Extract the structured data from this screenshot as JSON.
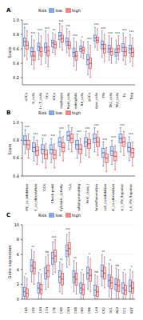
{
  "chart_data": [
    {
      "type": "box",
      "title": "A",
      "ylabel": "Score",
      "legend_title": "Risk",
      "categories": [
        "aDCs",
        "B_cells",
        "CD8+_T_cells",
        "DCs",
        "iDCs",
        "Macrophages",
        "Mast_cells",
        "Neutrophils",
        "NK_cells",
        "pDCs",
        "T_helper_cells",
        "Tfh",
        "Th1_cells",
        "Th2_cells",
        "TIL",
        "Treg"
      ],
      "significance": [
        "***",
        "***",
        "***",
        "***",
        "**",
        "***",
        "***",
        "***",
        "*",
        "***",
        "***",
        "***",
        "***",
        "***",
        "***",
        "***"
      ],
      "ylim": [
        0.1,
        1.0
      ],
      "yticks": [
        0.2,
        0.4,
        0.6,
        0.8,
        {
          "value": 1,
          "label": "1.0"
        }
      ],
      "series": [
        {
          "name": "low",
          "color": "#3a6fc4",
          "values": [
            0.7,
            0.56,
            0.63,
            0.62,
            0.68,
            0.78,
            0.7,
            0.55,
            0.6,
            0.45,
            0.75,
            0.66,
            0.6,
            0.55,
            0.62,
            0.6
          ],
          "q1": [
            0.64,
            0.5,
            0.57,
            0.55,
            0.63,
            0.73,
            0.65,
            0.49,
            0.56,
            0.38,
            0.71,
            0.6,
            0.55,
            0.5,
            0.56,
            0.54
          ],
          "q3": [
            0.75,
            0.62,
            0.68,
            0.68,
            0.72,
            0.83,
            0.75,
            0.61,
            0.64,
            0.52,
            0.79,
            0.71,
            0.65,
            0.6,
            0.67,
            0.65
          ],
          "whisker_low": [
            0.5,
            0.38,
            0.45,
            0.4,
            0.55,
            0.62,
            0.55,
            0.36,
            0.48,
            0.24,
            0.62,
            0.48,
            0.44,
            0.4,
            0.44,
            0.42
          ],
          "whisker_high": [
            0.9,
            0.78,
            0.82,
            0.85,
            0.82,
            0.95,
            0.88,
            0.75,
            0.72,
            0.7,
            0.9,
            0.85,
            0.78,
            0.72,
            0.82,
            0.8
          ]
        },
        {
          "name": "high",
          "color": "#d93a3a",
          "values": [
            0.65,
            0.5,
            0.56,
            0.57,
            0.66,
            0.74,
            0.65,
            0.5,
            0.58,
            0.4,
            0.72,
            0.6,
            0.56,
            0.6,
            0.56,
            0.55
          ],
          "q1": [
            0.59,
            0.44,
            0.5,
            0.5,
            0.61,
            0.69,
            0.6,
            0.44,
            0.54,
            0.33,
            0.68,
            0.54,
            0.51,
            0.55,
            0.5,
            0.49
          ],
          "q3": [
            0.7,
            0.56,
            0.62,
            0.63,
            0.7,
            0.79,
            0.7,
            0.56,
            0.62,
            0.47,
            0.76,
            0.66,
            0.61,
            0.65,
            0.62,
            0.61
          ],
          "whisker_low": [
            0.45,
            0.32,
            0.38,
            0.35,
            0.52,
            0.58,
            0.5,
            0.3,
            0.46,
            0.2,
            0.58,
            0.42,
            0.4,
            0.45,
            0.38,
            0.36
          ],
          "whisker_high": [
            0.85,
            0.72,
            0.78,
            0.8,
            0.8,
            0.92,
            0.84,
            0.7,
            0.7,
            0.65,
            0.88,
            0.8,
            0.75,
            0.78,
            0.76,
            0.75
          ]
        }
      ]
    },
    {
      "type": "box",
      "title": "B",
      "ylabel": "Score",
      "legend_title": "Risk",
      "categories": [
        "APC_co_inhibition",
        "APC_co_stimulation",
        "CCR",
        "Check-point",
        "Cytolytic_activity",
        "HLA",
        "Inflammation-promoting",
        "MHC_class_I",
        "Parainflammation",
        "T_cell_co-inhibition",
        "T_cell_co-stimulation",
        "Type_I_IFN_Reponse",
        "Type_II_IFN_Reponse"
      ],
      "significance": [
        "***",
        "***",
        "***",
        "***",
        "***",
        "*",
        "***",
        "***",
        "***",
        "***",
        "***",
        "***",
        "***"
      ],
      "ylim": [
        0.4,
        1.0
      ],
      "yticks": [
        0.4,
        0.6,
        0.8,
        {
          "value": 1,
          "label": "1.0"
        }
      ],
      "series": [
        {
          "name": "low",
          "color": "#3a6fc4",
          "values": [
            0.8,
            0.72,
            0.7,
            0.7,
            0.78,
            0.85,
            0.75,
            0.78,
            0.82,
            0.66,
            0.68,
            0.82,
            0.72
          ],
          "q1": [
            0.75,
            0.67,
            0.65,
            0.65,
            0.73,
            0.8,
            0.7,
            0.73,
            0.77,
            0.61,
            0.63,
            0.77,
            0.67
          ],
          "q3": [
            0.85,
            0.77,
            0.75,
            0.75,
            0.83,
            0.9,
            0.8,
            0.83,
            0.87,
            0.71,
            0.73,
            0.87,
            0.77
          ],
          "whisker_low": [
            0.65,
            0.57,
            0.55,
            0.55,
            0.63,
            0.7,
            0.6,
            0.63,
            0.67,
            0.51,
            0.53,
            0.67,
            0.57
          ],
          "whisker_high": [
            0.92,
            0.84,
            0.82,
            0.82,
            0.9,
            0.97,
            0.87,
            0.9,
            0.94,
            0.78,
            0.8,
            0.94,
            0.84
          ]
        },
        {
          "name": "high",
          "color": "#d93a3a",
          "values": [
            0.75,
            0.68,
            0.64,
            0.64,
            0.72,
            0.82,
            0.7,
            0.76,
            0.78,
            0.6,
            0.62,
            0.78,
            0.66
          ],
          "q1": [
            0.7,
            0.63,
            0.59,
            0.59,
            0.67,
            0.77,
            0.65,
            0.71,
            0.73,
            0.55,
            0.57,
            0.73,
            0.61
          ],
          "q3": [
            0.8,
            0.73,
            0.69,
            0.69,
            0.77,
            0.87,
            0.75,
            0.81,
            0.83,
            0.65,
            0.67,
            0.83,
            0.71
          ],
          "whisker_low": [
            0.6,
            0.53,
            0.49,
            0.49,
            0.57,
            0.67,
            0.55,
            0.61,
            0.63,
            0.45,
            0.47,
            0.63,
            0.51
          ],
          "whisker_high": [
            0.87,
            0.8,
            0.76,
            0.76,
            0.84,
            0.94,
            0.82,
            0.88,
            0.9,
            0.72,
            0.74,
            0.9,
            0.78
          ]
        }
      ]
    },
    {
      "type": "box",
      "title": "C",
      "ylabel": "Gene expression",
      "legend_title": "Risk",
      "categories": [
        "CD160",
        "CD200",
        "CD244",
        "CD274",
        "CD276",
        "CD40",
        "CD44",
        "CD48",
        "CD80",
        "CD86",
        "CTLA4",
        "HAVCR2",
        "IDO1",
        "LAG3",
        "PDCD1",
        "TIGIT"
      ],
      "significance": [
        "*",
        "**",
        "*",
        "ns",
        "***",
        "**",
        "***",
        "**",
        "*",
        "*",
        "ns",
        "**",
        "*",
        "ns",
        "*",
        "*"
      ],
      "ylim": [
        0,
        10
      ],
      "yticks": [
        0,
        2,
        4,
        6,
        8,
        10
      ],
      "series": [
        {
          "name": "low",
          "color": "#3a6fc4",
          "values": [
            1.0,
            4.5,
            1.5,
            3.5,
            5.5,
            3.0,
            6.5,
            3.0,
            1.5,
            3.5,
            1.2,
            3.8,
            2.5,
            2.0,
            1.5,
            1.8
          ],
          "q1": [
            0.4,
            3.7,
            0.8,
            2.7,
            4.7,
            2.2,
            5.7,
            2.2,
            0.8,
            2.7,
            0.5,
            3.0,
            1.7,
            1.2,
            0.8,
            1.0
          ],
          "q3": [
            1.6,
            5.3,
            2.2,
            4.3,
            6.3,
            3.8,
            7.3,
            3.8,
            2.2,
            4.3,
            1.9,
            4.6,
            3.3,
            2.8,
            2.2,
            2.6
          ],
          "whisker_low": [
            0.0,
            2.3,
            0.0,
            1.3,
            3.3,
            1.0,
            4.3,
            1.0,
            0.0,
            1.3,
            0.0,
            1.8,
            0.3,
            0.0,
            0.0,
            0.0
          ],
          "whisker_high": [
            3.0,
            6.7,
            3.6,
            5.7,
            7.7,
            5.0,
            8.7,
            5.2,
            3.6,
            5.7,
            3.3,
            6.0,
            4.8,
            4.2,
            3.6,
            4.0
          ]
        },
        {
          "name": "high",
          "color": "#d93a3a",
          "values": [
            0.8,
            4.2,
            1.3,
            3.8,
            5.8,
            2.7,
            6.8,
            2.7,
            1.3,
            3.2,
            1.0,
            3.5,
            2.2,
            1.8,
            1.2,
            1.5
          ],
          "q1": [
            0.3,
            3.4,
            0.7,
            3.0,
            5.0,
            1.9,
            6.0,
            1.9,
            0.6,
            2.4,
            0.4,
            2.7,
            1.4,
            1.0,
            0.6,
            0.8
          ],
          "q3": [
            1.4,
            5.0,
            2.0,
            4.6,
            6.6,
            3.5,
            7.6,
            3.5,
            2.0,
            4.0,
            1.7,
            4.3,
            3.0,
            2.6,
            1.9,
            2.3
          ],
          "whisker_low": [
            0.0,
            2.0,
            0.0,
            1.6,
            3.6,
            0.7,
            4.6,
            0.7,
            0.0,
            1.0,
            0.0,
            1.5,
            0.0,
            0.0,
            0.0,
            0.0
          ],
          "whisker_high": [
            2.8,
            6.4,
            3.4,
            6.0,
            8.0,
            4.7,
            9.0,
            4.9,
            3.4,
            5.4,
            3.1,
            5.7,
            4.5,
            4.0,
            3.4,
            3.7
          ]
        }
      ]
    }
  ]
}
